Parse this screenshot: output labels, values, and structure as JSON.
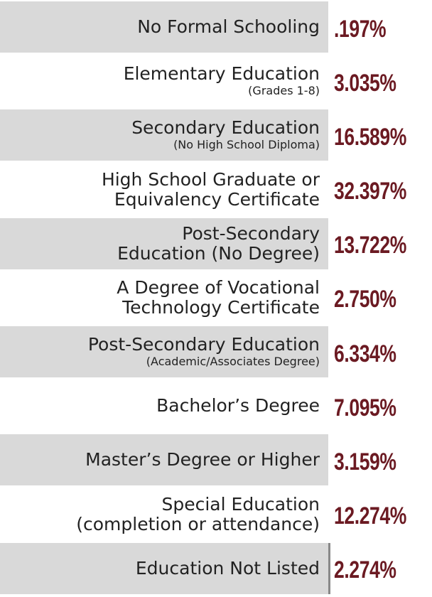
{
  "rows": [
    {
      "lines": [
        "No Formal Schooling"
      ],
      "value": ".197%"
    },
    {
      "lines": [
        "Elementary Education"
      ],
      "note": "(Grades 1-8)",
      "value": "3.035%"
    },
    {
      "lines": [
        "Secondary Education"
      ],
      "note": "(No High School Diploma)",
      "value": "16.589%"
    },
    {
      "lines": [
        "High School Graduate or",
        "Equivalency Certificate"
      ],
      "value": "32.397%"
    },
    {
      "lines": [
        "Post-Secondary",
        "Education (No Degree)"
      ],
      "value": "13.722%"
    },
    {
      "lines": [
        "A Degree of Vocational",
        "Technology Certificate"
      ],
      "value": "2.750%"
    },
    {
      "lines": [
        "Post-Secondary Education"
      ],
      "note": "(Academic/Associates Degree)",
      "value": "6.334%"
    },
    {
      "lines": [
        "Bachelor’s Degree"
      ],
      "value": "7.095%"
    },
    {
      "lines": [
        "Master’s Degree or Higher"
      ],
      "value": "3.159%"
    },
    {
      "lines": [
        "Special Education",
        "(completion or attendance)"
      ],
      "value": "12.274%"
    },
    {
      "lines": [
        "Education Not Listed"
      ],
      "value": "2.274%"
    }
  ]
}
